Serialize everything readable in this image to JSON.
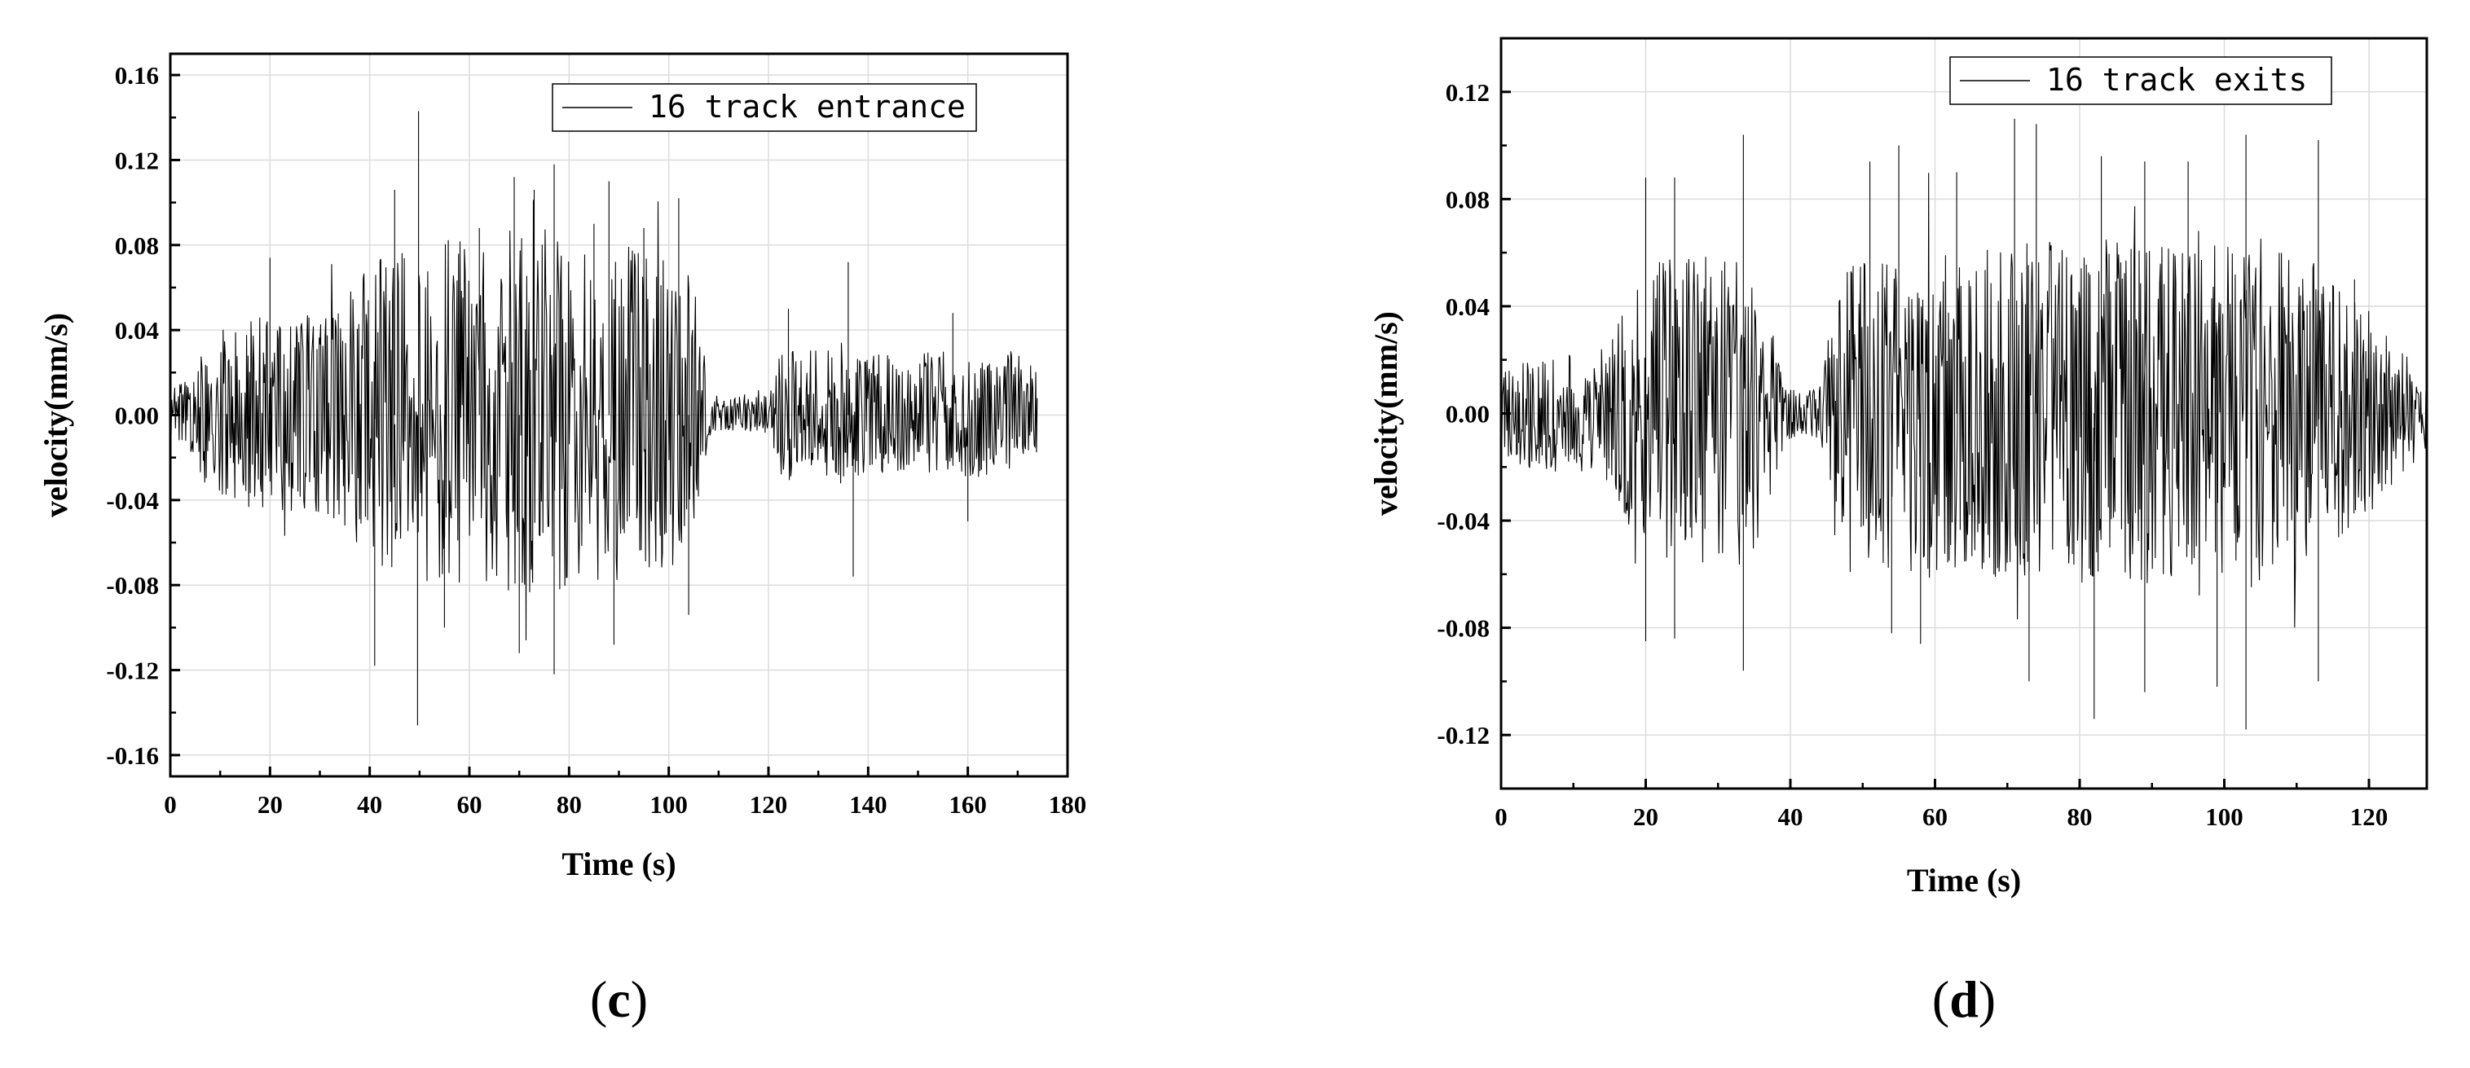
{
  "chart_data": [
    {
      "id": "c",
      "type": "line",
      "panel_label": "c",
      "xlabel": "Time (s)",
      "ylabel": "velocity(mm/s)",
      "xlim": [
        0,
        180
      ],
      "ylim": [
        -0.17,
        0.17
      ],
      "x_ticks": [
        0,
        20,
        40,
        60,
        80,
        100,
        120,
        140,
        160,
        180
      ],
      "x_tick_labels": [
        "0",
        "20",
        "40",
        "60",
        "80",
        "100",
        "120",
        "140",
        "160",
        "180"
      ],
      "y_ticks": [
        -0.16,
        -0.12,
        -0.08,
        -0.04,
        0.0,
        0.04,
        0.08,
        0.12,
        0.16
      ],
      "y_tick_labels": [
        "-0.16",
        "-0.12",
        "-0.08",
        "-0.04",
        "0.00",
        "0.04",
        "0.08",
        "0.12",
        "0.16"
      ],
      "grid": true,
      "legend_position": "top-right",
      "line_color": "#000000",
      "series": [
        {
          "name": "16 track entrance",
          "time_range": [
            0,
            174
          ],
          "envelope": {
            "x": [
              0,
              5,
              7,
              10,
              15,
              20,
              25,
              30,
              35,
              38,
              42,
              45,
              50,
              55,
              60,
              65,
              70,
              75,
              80,
              85,
              90,
              95,
              100,
              104,
              106,
              108,
              110,
              115,
              120,
              122,
              125,
              130,
              135,
              140,
              145,
              150,
              155,
              160,
              165,
              170,
              174
            ],
            "upper": [
              0.012,
              0.02,
              0.036,
              0.04,
              0.045,
              0.05,
              0.047,
              0.048,
              0.055,
              0.065,
              0.075,
              0.078,
              0.082,
              0.083,
              0.082,
              0.085,
              0.088,
              0.088,
              0.085,
              0.08,
              0.082,
              0.078,
              0.075,
              0.07,
              0.05,
              0.012,
              0.01,
              0.01,
              0.01,
              0.03,
              0.034,
              0.032,
              0.035,
              0.03,
              0.032,
              0.03,
              0.03,
              0.033,
              0.03,
              0.03,
              0.022
            ],
            "lower": [
              -0.012,
              -0.02,
              -0.034,
              -0.038,
              -0.043,
              -0.046,
              -0.046,
              -0.048,
              -0.053,
              -0.062,
              -0.072,
              -0.076,
              -0.078,
              -0.08,
              -0.078,
              -0.082,
              -0.085,
              -0.085,
              -0.082,
              -0.078,
              -0.08,
              -0.076,
              -0.073,
              -0.068,
              -0.045,
              -0.01,
              -0.008,
              -0.008,
              -0.01,
              -0.028,
              -0.032,
              -0.03,
              -0.033,
              -0.028,
              -0.03,
              -0.028,
              -0.028,
              -0.03,
              -0.028,
              -0.028,
              -0.02
            ]
          },
          "peaks": [
            {
              "x": 20,
              "y": 0.074
            },
            {
              "x": 41,
              "y": -0.118
            },
            {
              "x": 45,
              "y": 0.106
            },
            {
              "x": 49.8,
              "y": 0.143
            },
            {
              "x": 49.6,
              "y": -0.146
            },
            {
              "x": 55,
              "y": -0.1
            },
            {
              "x": 62,
              "y": 0.088
            },
            {
              "x": 69,
              "y": 0.112
            },
            {
              "x": 70,
              "y": -0.112
            },
            {
              "x": 73,
              "y": 0.106
            },
            {
              "x": 77,
              "y": 0.118
            },
            {
              "x": 77,
              "y": -0.122
            },
            {
              "x": 85,
              "y": 0.09
            },
            {
              "x": 88,
              "y": 0.11
            },
            {
              "x": 89,
              "y": -0.108
            },
            {
              "x": 95,
              "y": 0.088
            },
            {
              "x": 102,
              "y": 0.102
            },
            {
              "x": 104,
              "y": -0.094
            },
            {
              "x": 136,
              "y": 0.072
            },
            {
              "x": 137,
              "y": -0.076
            },
            {
              "x": 124,
              "y": 0.05
            },
            {
              "x": 157,
              "y": 0.048
            },
            {
              "x": 160,
              "y": -0.05
            }
          ]
        }
      ]
    },
    {
      "id": "d",
      "type": "line",
      "panel_label": "d",
      "xlabel": "Time (s)",
      "ylabel": "velocity(mm/s)",
      "xlim": [
        0,
        128
      ],
      "ylim": [
        -0.14,
        0.14
      ],
      "x_ticks": [
        0,
        20,
        40,
        60,
        80,
        100,
        120
      ],
      "x_tick_labels": [
        "0",
        "20",
        "40",
        "60",
        "80",
        "100",
        "120"
      ],
      "y_ticks": [
        -0.12,
        -0.08,
        -0.04,
        0.0,
        0.04,
        0.08,
        0.12
      ],
      "y_tick_labels": [
        "-0.12",
        "-0.08",
        "-0.04",
        "0.00",
        "0.04",
        "0.08",
        "0.12"
      ],
      "grid": true,
      "legend_position": "top-right",
      "line_color": "#000000",
      "series": [
        {
          "name": "16 track exits",
          "time_range": [
            0,
            128
          ],
          "envelope": {
            "x": [
              0,
              3,
              6,
              10,
              15,
              18,
              22,
              26,
              30,
              34,
              37,
              39,
              41,
              44,
              46,
              48,
              52,
              56,
              60,
              64,
              68,
              72,
              76,
              80,
              84,
              88,
              92,
              96,
              100,
              104,
              108,
              112,
              116,
              120,
              124,
              128
            ],
            "upper": [
              0.015,
              0.02,
              0.022,
              0.022,
              0.028,
              0.045,
              0.058,
              0.06,
              0.058,
              0.06,
              0.04,
              0.012,
              0.008,
              0.01,
              0.04,
              0.055,
              0.058,
              0.06,
              0.062,
              0.06,
              0.062,
              0.063,
              0.066,
              0.064,
              0.065,
              0.064,
              0.062,
              0.06,
              0.064,
              0.065,
              0.062,
              0.058,
              0.05,
              0.04,
              0.025,
              0.015
            ],
            "lower": [
              -0.015,
              -0.02,
              -0.022,
              -0.022,
              -0.028,
              -0.045,
              -0.056,
              -0.058,
              -0.056,
              -0.058,
              -0.04,
              -0.012,
              -0.008,
              -0.01,
              -0.04,
              -0.055,
              -0.058,
              -0.06,
              -0.062,
              -0.06,
              -0.062,
              -0.063,
              -0.066,
              -0.064,
              -0.065,
              -0.064,
              -0.062,
              -0.06,
              -0.064,
              -0.065,
              -0.062,
              -0.058,
              -0.05,
              -0.04,
              -0.025,
              -0.015
            ]
          },
          "peaks": [
            {
              "x": 20,
              "y": 0.088
            },
            {
              "x": 20,
              "y": -0.085
            },
            {
              "x": 24,
              "y": 0.088
            },
            {
              "x": 24,
              "y": -0.084
            },
            {
              "x": 33.5,
              "y": 0.104
            },
            {
              "x": 33.5,
              "y": -0.096
            },
            {
              "x": 51,
              "y": 0.094
            },
            {
              "x": 55,
              "y": 0.1
            },
            {
              "x": 54,
              "y": -0.082
            },
            {
              "x": 58,
              "y": -0.086
            },
            {
              "x": 63,
              "y": 0.09
            },
            {
              "x": 71,
              "y": 0.11
            },
            {
              "x": 73,
              "y": -0.1
            },
            {
              "x": 74,
              "y": 0.108
            },
            {
              "x": 82,
              "y": -0.114
            },
            {
              "x": 83,
              "y": 0.096
            },
            {
              "x": 89,
              "y": 0.094
            },
            {
              "x": 89,
              "y": -0.104
            },
            {
              "x": 95,
              "y": 0.094
            },
            {
              "x": 99,
              "y": -0.102
            },
            {
              "x": 103,
              "y": 0.104
            },
            {
              "x": 103,
              "y": -0.118
            },
            {
              "x": 113,
              "y": 0.102
            },
            {
              "x": 113,
              "y": -0.1
            },
            {
              "x": 118,
              "y": 0.05
            }
          ]
        }
      ]
    }
  ]
}
